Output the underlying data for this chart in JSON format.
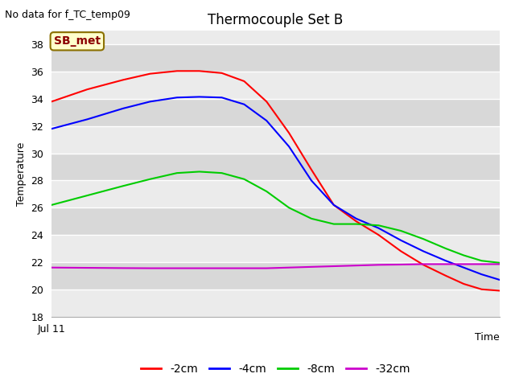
{
  "title": "Thermocouple Set B",
  "subtitle": "No data for f_TC_temp09",
  "xlabel": "Time",
  "ylabel": "Temperature",
  "xlim": [
    0,
    1
  ],
  "ylim": [
    18,
    39
  ],
  "yticks": [
    18,
    20,
    22,
    24,
    26,
    28,
    30,
    32,
    34,
    36,
    38
  ],
  "xticklabel": "Jul 11",
  "bg_color_light": "#ebebeb",
  "bg_color_dark": "#d8d8d8",
  "fig_color": "#ffffff",
  "annotation_text": "SB_met",
  "annotation_color": "#8b0000",
  "annotation_bg": "#ffffcc",
  "annotation_border": "#8b7000",
  "series": {
    "neg2cm": {
      "label": "-2cm",
      "color": "#ff0000",
      "x": [
        0.0,
        0.08,
        0.16,
        0.22,
        0.28,
        0.33,
        0.38,
        0.43,
        0.48,
        0.53,
        0.58,
        0.63,
        0.68,
        0.73,
        0.78,
        0.83,
        0.88,
        0.92,
        0.96,
        1.0
      ],
      "y": [
        33.8,
        34.7,
        35.4,
        35.85,
        36.05,
        36.05,
        35.9,
        35.3,
        33.8,
        31.5,
        28.8,
        26.2,
        25.0,
        24.0,
        22.8,
        21.8,
        21.0,
        20.4,
        20.0,
        19.9
      ]
    },
    "neg4cm": {
      "label": "-4cm",
      "color": "#0000ff",
      "x": [
        0.0,
        0.08,
        0.16,
        0.22,
        0.28,
        0.33,
        0.38,
        0.43,
        0.48,
        0.53,
        0.58,
        0.63,
        0.68,
        0.73,
        0.78,
        0.83,
        0.88,
        0.92,
        0.96,
        1.0
      ],
      "y": [
        31.8,
        32.5,
        33.3,
        33.8,
        34.1,
        34.15,
        34.1,
        33.6,
        32.4,
        30.5,
        28.0,
        26.2,
        25.2,
        24.5,
        23.6,
        22.8,
        22.1,
        21.6,
        21.1,
        20.7
      ]
    },
    "neg8cm": {
      "label": "-8cm",
      "color": "#00cc00",
      "x": [
        0.0,
        0.08,
        0.16,
        0.22,
        0.28,
        0.33,
        0.38,
        0.43,
        0.48,
        0.53,
        0.58,
        0.63,
        0.68,
        0.73,
        0.78,
        0.83,
        0.88,
        0.92,
        0.96,
        1.0
      ],
      "y": [
        26.2,
        26.9,
        27.6,
        28.1,
        28.55,
        28.65,
        28.55,
        28.1,
        27.2,
        26.0,
        25.2,
        24.8,
        24.8,
        24.7,
        24.3,
        23.7,
        23.0,
        22.5,
        22.1,
        21.95
      ]
    },
    "neg32cm": {
      "label": "-32cm",
      "color": "#cc00cc",
      "x": [
        0.0,
        0.08,
        0.16,
        0.22,
        0.28,
        0.33,
        0.38,
        0.43,
        0.48,
        0.53,
        0.58,
        0.63,
        0.68,
        0.73,
        0.78,
        0.83,
        0.88,
        0.92,
        0.96,
        1.0
      ],
      "y": [
        21.6,
        21.58,
        21.56,
        21.55,
        21.55,
        21.55,
        21.55,
        21.55,
        21.55,
        21.6,
        21.65,
        21.7,
        21.75,
        21.8,
        21.82,
        21.85,
        21.85,
        21.85,
        21.85,
        21.85
      ]
    }
  }
}
